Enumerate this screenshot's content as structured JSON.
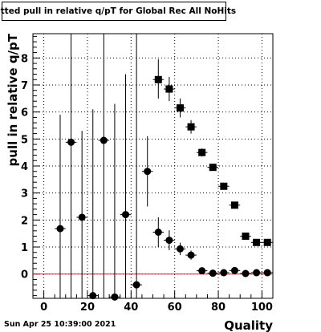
{
  "chart_data": {
    "type": "scatter",
    "title": "Fitted pull in relative q/pT for Global Rec All NoHits",
    "xlabel": "Quality",
    "ylabel": "pull in relative q/pT",
    "xlim": [
      -5,
      105
    ],
    "ylim": [
      -0.9,
      8.9
    ],
    "x_ticks": [
      0,
      20,
      40,
      60,
      80,
      100
    ],
    "y_ticks": [
      0,
      1,
      2,
      3,
      4,
      5,
      6,
      7,
      8
    ],
    "grid": true,
    "reference_line": {
      "y": 0,
      "color": "#e02020"
    },
    "series": [
      {
        "marker": "circle",
        "color": "#000000",
        "points": [
          {
            "x": 7.5,
            "y": 1.68,
            "ylo": -0.9,
            "yhi": 5.9
          },
          {
            "x": 12.5,
            "y": 4.88,
            "ylo": -0.9,
            "yhi": 8.9
          },
          {
            "x": 17.5,
            "y": 2.1,
            "ylo": -0.9,
            "yhi": 5.3
          },
          {
            "x": 22.5,
            "y": -0.8,
            "ylo": -0.9,
            "yhi": 6.1
          },
          {
            "x": 27.5,
            "y": 4.95,
            "ylo": -0.9,
            "yhi": 8.9
          },
          {
            "x": 32.5,
            "y": -0.85,
            "ylo": -0.9,
            "yhi": 6.3
          },
          {
            "x": 37.5,
            "y": 2.2,
            "ylo": -0.9,
            "yhi": 7.4
          },
          {
            "x": 42.5,
            "y": -0.4,
            "ylo": -0.9,
            "yhi": 8.9
          },
          {
            "x": 47.5,
            "y": 3.8,
            "ylo": 2.5,
            "yhi": 5.1
          },
          {
            "x": 52.5,
            "y": 1.55,
            "ylo": 1.0,
            "yhi": 2.1
          },
          {
            "x": 57.5,
            "y": 1.25,
            "ylo": 0.88,
            "yhi": 1.62
          },
          {
            "x": 62.5,
            "y": 0.93,
            "ylo": 0.7,
            "yhi": 1.16
          },
          {
            "x": 67.5,
            "y": 0.7,
            "ylo": 0.53,
            "yhi": 0.87
          },
          {
            "x": 72.5,
            "y": 0.12,
            "ylo": 0.05,
            "yhi": 0.19
          },
          {
            "x": 77.5,
            "y": 0.03,
            "ylo": -0.02,
            "yhi": 0.08
          },
          {
            "x": 82.5,
            "y": 0.05,
            "ylo": 0.01,
            "yhi": 0.09
          },
          {
            "x": 87.5,
            "y": 0.13,
            "ylo": 0.09,
            "yhi": 0.17
          },
          {
            "x": 92.5,
            "y": 0.02,
            "ylo": -0.01,
            "yhi": 0.05
          },
          {
            "x": 97.5,
            "y": 0.05,
            "ylo": 0.02,
            "yhi": 0.08
          },
          {
            "x": 102.5,
            "y": 0.05,
            "ylo": 0.02,
            "yhi": 0.08
          }
        ]
      },
      {
        "marker": "square",
        "color": "#000000",
        "points": [
          {
            "x": 52.5,
            "y": 7.2,
            "ylo": 6.5,
            "yhi": 7.95
          },
          {
            "x": 57.5,
            "y": 6.85,
            "ylo": 6.4,
            "yhi": 7.3
          },
          {
            "x": 62.5,
            "y": 6.15,
            "ylo": 5.8,
            "yhi": 6.5
          },
          {
            "x": 67.5,
            "y": 5.45,
            "ylo": 5.2,
            "yhi": 5.7
          },
          {
            "x": 72.5,
            "y": 4.5,
            "ylo": 4.35,
            "yhi": 4.65
          },
          {
            "x": 77.5,
            "y": 3.95,
            "ylo": 3.85,
            "yhi": 4.05
          },
          {
            "x": 82.5,
            "y": 3.25,
            "ylo": 3.17,
            "yhi": 3.33
          },
          {
            "x": 87.5,
            "y": 2.55,
            "ylo": 2.49,
            "yhi": 2.61
          },
          {
            "x": 92.5,
            "y": 1.4,
            "ylo": 1.35,
            "yhi": 1.45
          },
          {
            "x": 97.5,
            "y": 1.17,
            "ylo": 1.13,
            "yhi": 1.21
          },
          {
            "x": 102.5,
            "y": 1.17,
            "ylo": 1.13,
            "yhi": 1.21
          }
        ]
      }
    ]
  },
  "footer": {
    "timestamp": "Sun Apr 25 10:39:00 2021"
  }
}
